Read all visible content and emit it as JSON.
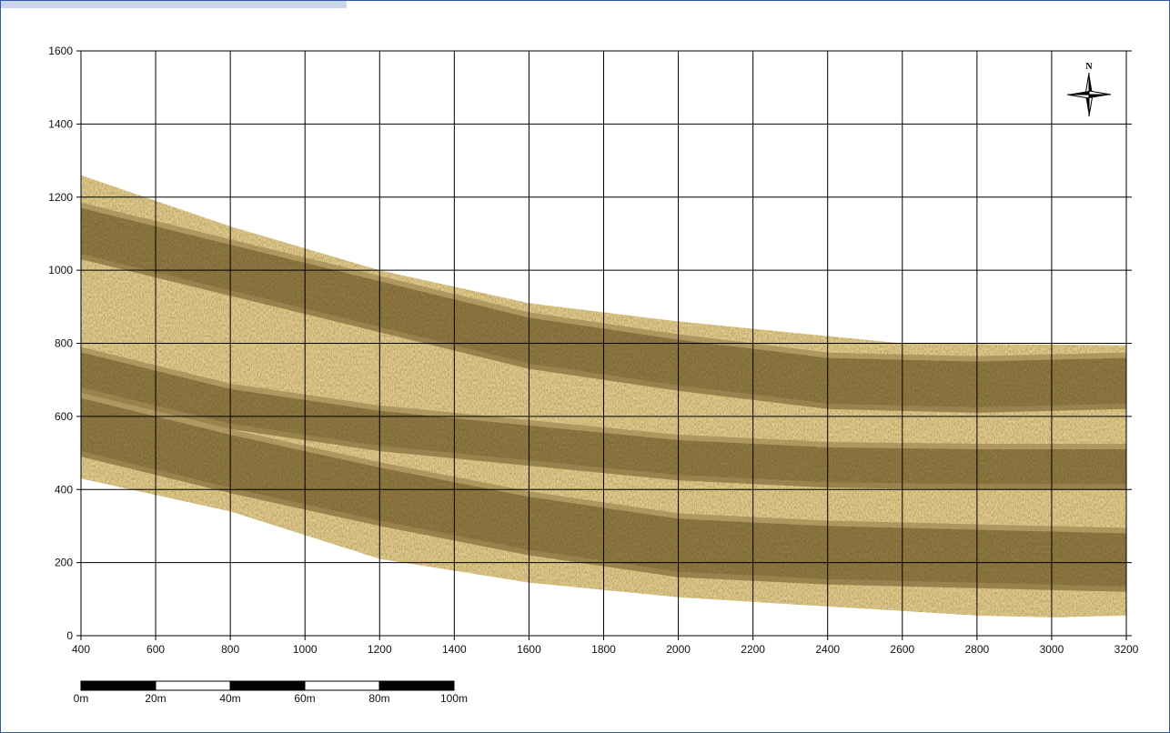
{
  "colors": {
    "window_border": "#2f5aa8",
    "tab_strip": "#c9d6ea",
    "sand_light": "#e2cc8e",
    "sand_dark": "#5a4216",
    "grid": "#000000"
  },
  "chart_data": {
    "type": "map",
    "xlim": [
      400,
      3200
    ],
    "ylim": [
      0,
      1600
    ],
    "x_ticks": [
      400,
      600,
      800,
      1000,
      1200,
      1400,
      1600,
      1800,
      2000,
      2200,
      2400,
      2600,
      2800,
      3000,
      3200
    ],
    "y_ticks": [
      0,
      200,
      400,
      600,
      800,
      1000,
      1200,
      1400,
      1600
    ],
    "x_tick_labels": [
      "400",
      "600",
      "800",
      "1000",
      "1200",
      "1400",
      "1600",
      "1800",
      "2000",
      "2200",
      "2400",
      "2600",
      "2800",
      "3000",
      "3200"
    ],
    "y_tick_labels": [
      "0",
      "200",
      "400",
      "600",
      "800",
      "1000",
      "1200",
      "1400",
      "1600"
    ],
    "grid": true,
    "survey_swath": {
      "upper_edge": [
        [
          400,
          1260
        ],
        [
          800,
          1120
        ],
        [
          1200,
          1000
        ],
        [
          1600,
          910
        ],
        [
          2000,
          860
        ],
        [
          2400,
          820
        ],
        [
          2600,
          800
        ],
        [
          3200,
          795
        ]
      ],
      "lower_edge": [
        [
          400,
          430
        ],
        [
          800,
          340
        ],
        [
          1200,
          210
        ],
        [
          1600,
          145
        ],
        [
          2000,
          105
        ],
        [
          2400,
          80
        ],
        [
          2800,
          55
        ],
        [
          3000,
          50
        ],
        [
          3200,
          55
        ]
      ],
      "dark_bands": [
        {
          "center": [
            [
              400,
              1100
            ],
            [
              800,
              1000
            ],
            [
              1200,
              900
            ],
            [
              1600,
              800
            ],
            [
              2000,
              740
            ],
            [
              2400,
              690
            ],
            [
              2800,
              680
            ],
            [
              3200,
              690
            ]
          ],
          "width": 70
        },
        {
          "center": [
            [
              400,
              720
            ],
            [
              800,
              620
            ],
            [
              1200,
              560
            ],
            [
              1600,
              520
            ],
            [
              2000,
              480
            ],
            [
              2400,
              460
            ],
            [
              2800,
              455
            ],
            [
              3200,
              455
            ]
          ],
          "width": 55
        },
        {
          "center": [
            [
              400,
              570
            ],
            [
              800,
              470
            ],
            [
              1200,
              380
            ],
            [
              1600,
              300
            ],
            [
              2000,
              240
            ],
            [
              2400,
              220
            ],
            [
              2800,
              210
            ],
            [
              3200,
              200
            ]
          ],
          "width": 80
        }
      ]
    },
    "scale_bar": {
      "segments": 5,
      "labels": [
        "0m",
        "20m",
        "40m",
        "60m",
        "80m",
        "100m"
      ]
    },
    "north_arrow": {
      "label": "N",
      "icon": "compass-rose-icon"
    }
  }
}
